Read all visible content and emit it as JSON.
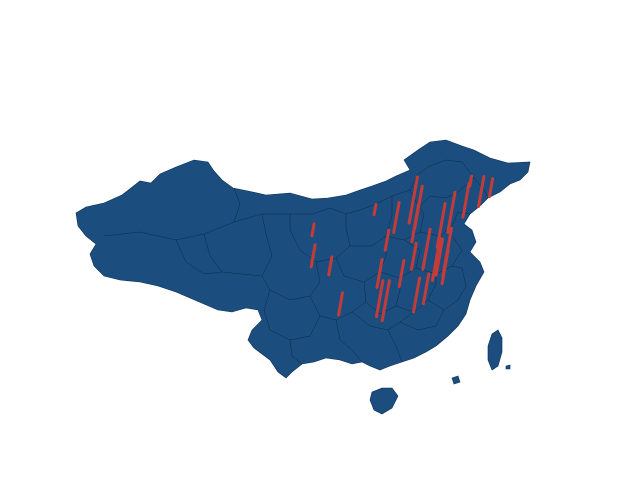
{
  "map": {
    "region": "China",
    "style": "3d-bar-map",
    "colors": {
      "land": "#1b4e7e",
      "border": "#0b2540",
      "bar": "#c43c39",
      "background": "#ffffff"
    }
  },
  "bars": [
    {
      "name": "heilongjiang-a",
      "lon": 126.6,
      "lat": 45.8,
      "value": 18
    },
    {
      "name": "jilin",
      "lon": 125.3,
      "lat": 43.9,
      "value": 30
    },
    {
      "name": "liaoning-a",
      "lon": 123.4,
      "lat": 41.8,
      "value": 34
    },
    {
      "name": "liaoning-b",
      "lon": 121.6,
      "lat": 38.9,
      "value": 40
    },
    {
      "name": "beijing",
      "lon": 116.4,
      "lat": 39.9,
      "value": 46
    },
    {
      "name": "tianjin",
      "lon": 117.2,
      "lat": 39.1,
      "value": 42
    },
    {
      "name": "hebei",
      "lon": 114.5,
      "lat": 38.0,
      "value": 30
    },
    {
      "name": "shandong-a",
      "lon": 117.0,
      "lat": 36.7,
      "value": 38
    },
    {
      "name": "shandong-b",
      "lon": 120.4,
      "lat": 36.1,
      "value": 44
    },
    {
      "name": "jiangsu-a",
      "lon": 118.8,
      "lat": 32.1,
      "value": 40
    },
    {
      "name": "jiangsu-b",
      "lon": 120.6,
      "lat": 31.3,
      "value": 36
    },
    {
      "name": "shanghai",
      "lon": 121.5,
      "lat": 31.2,
      "value": 48
    },
    {
      "name": "zhejiang",
      "lon": 120.2,
      "lat": 30.3,
      "value": 42
    },
    {
      "name": "ningbo",
      "lon": 121.5,
      "lat": 29.9,
      "value": 34
    },
    {
      "name": "anhui",
      "lon": 117.3,
      "lat": 31.9,
      "value": 26
    },
    {
      "name": "fujian-a",
      "lon": 119.3,
      "lat": 26.1,
      "value": 30
    },
    {
      "name": "fujian-b",
      "lon": 118.1,
      "lat": 24.5,
      "value": 34
    },
    {
      "name": "jiangxi",
      "lon": 115.9,
      "lat": 28.7,
      "value": 26
    },
    {
      "name": "hunan",
      "lon": 113.0,
      "lat": 28.2,
      "value": 28
    },
    {
      "name": "guangdong-a",
      "lon": 113.3,
      "lat": 23.1,
      "value": 36
    },
    {
      "name": "guangdong-b",
      "lon": 114.1,
      "lat": 22.5,
      "value": 40
    },
    {
      "name": "guangxi",
      "lon": 108.3,
      "lat": 22.8,
      "value": 22
    },
    {
      "name": "sichuan",
      "lon": 104.1,
      "lat": 30.7,
      "value": 22
    },
    {
      "name": "chongqing",
      "lon": 106.5,
      "lat": 29.6,
      "value": 18
    },
    {
      "name": "gansu",
      "lon": 103.8,
      "lat": 36.1,
      "value": 12
    },
    {
      "name": "inner-mongolia",
      "lon": 111.7,
      "lat": 40.8,
      "value": 10
    },
    {
      "name": "heilongjiang-b",
      "lon": 123.9,
      "lat": 47.3,
      "value": 10
    },
    {
      "name": "henan",
      "lon": 113.6,
      "lat": 34.8,
      "value": 20
    }
  ]
}
